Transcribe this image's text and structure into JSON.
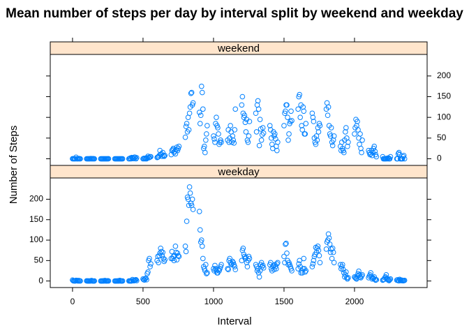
{
  "chart_data": {
    "type": "scatter",
    "layout": "panels",
    "title": "Mean number of steps per day by interval split by weekend and weekday",
    "xlabel": "Interval",
    "ylabel": "Number of Steps",
    "xlim": [
      -158,
      2515
    ],
    "xticks": [
      0,
      500,
      1000,
      1500,
      2000
    ],
    "ylim": [
      -16,
      252
    ],
    "yticks": [
      0,
      50,
      100,
      150,
      200
    ],
    "strip_color": "#ffe5cc",
    "x": [
      0,
      5,
      10,
      15,
      20,
      25,
      30,
      35,
      40,
      45,
      50,
      55,
      100,
      105,
      110,
      115,
      120,
      125,
      130,
      135,
      140,
      145,
      150,
      155,
      200,
      205,
      210,
      215,
      220,
      225,
      230,
      235,
      240,
      245,
      250,
      255,
      300,
      305,
      310,
      315,
      320,
      325,
      330,
      335,
      340,
      345,
      350,
      355,
      400,
      405,
      410,
      415,
      420,
      425,
      430,
      435,
      440,
      445,
      450,
      455,
      500,
      505,
      510,
      515,
      520,
      525,
      530,
      535,
      540,
      545,
      550,
      555,
      600,
      605,
      610,
      615,
      620,
      625,
      630,
      635,
      640,
      645,
      650,
      655,
      700,
      705,
      710,
      715,
      720,
      725,
      730,
      735,
      740,
      745,
      750,
      755,
      800,
      805,
      810,
      815,
      820,
      825,
      830,
      835,
      840,
      845,
      850,
      855,
      900,
      905,
      910,
      915,
      920,
      925,
      930,
      935,
      940,
      945,
      950,
      955,
      1000,
      1005,
      1010,
      1015,
      1020,
      1025,
      1030,
      1035,
      1040,
      1045,
      1050,
      1055,
      1100,
      1105,
      1110,
      1115,
      1120,
      1125,
      1130,
      1135,
      1140,
      1145,
      1150,
      1155,
      1200,
      1205,
      1210,
      1215,
      1220,
      1225,
      1230,
      1235,
      1240,
      1245,
      1250,
      1255,
      1300,
      1305,
      1310,
      1315,
      1320,
      1325,
      1330,
      1335,
      1340,
      1345,
      1350,
      1355,
      1400,
      1405,
      1410,
      1415,
      1420,
      1425,
      1430,
      1435,
      1440,
      1445,
      1450,
      1455,
      1500,
      1505,
      1510,
      1515,
      1520,
      1525,
      1530,
      1535,
      1540,
      1545,
      1550,
      1555,
      1600,
      1605,
      1610,
      1615,
      1620,
      1625,
      1630,
      1635,
      1640,
      1645,
      1650,
      1655,
      1700,
      1705,
      1710,
      1715,
      1720,
      1725,
      1730,
      1735,
      1740,
      1745,
      1750,
      1755,
      1800,
      1805,
      1810,
      1815,
      1820,
      1825,
      1830,
      1835,
      1840,
      1845,
      1850,
      1855,
      1900,
      1905,
      1910,
      1915,
      1920,
      1925,
      1930,
      1935,
      1940,
      1945,
      1950,
      1955,
      2000,
      2005,
      2010,
      2015,
      2020,
      2025,
      2030,
      2035,
      2040,
      2045,
      2050,
      2055,
      2100,
      2105,
      2110,
      2115,
      2120,
      2125,
      2130,
      2135,
      2140,
      2145,
      2150,
      2155,
      2200,
      2205,
      2210,
      2215,
      2220,
      2225,
      2230,
      2235,
      2240,
      2245,
      2250,
      2255,
      2300,
      2305,
      2310,
      2315,
      2320,
      2325,
      2330,
      2335,
      2340,
      2345,
      2350,
      2355
    ],
    "series": [
      {
        "name": "weekend",
        "color": "#0080ff",
        "values": [
          0.2,
          0,
          0,
          0,
          0,
          3.8,
          0,
          0,
          0,
          0.5,
          0,
          0,
          0,
          0,
          0,
          0,
          0,
          0,
          0.5,
          0,
          0,
          0.3,
          0,
          0,
          0,
          0,
          0,
          0,
          0,
          0,
          0,
          0,
          0,
          0,
          0,
          0.2,
          0,
          0,
          0,
          0,
          0,
          0,
          0,
          0,
          0,
          0,
          0,
          0,
          0,
          0,
          1.8,
          0,
          3,
          2,
          0.5,
          0.5,
          4,
          3.6,
          0,
          2.5,
          0,
          1,
          0,
          1.2,
          0,
          0,
          2.5,
          6,
          2.5,
          3,
          5,
          5,
          3,
          4,
          5,
          8,
          20,
          10,
          12,
          6,
          15,
          8,
          6,
          8,
          10,
          20,
          22,
          25,
          15,
          18,
          12,
          22,
          28,
          20,
          25,
          30,
          52,
          78,
          85,
          65,
          100,
          70,
          110,
          125,
          158,
          160,
          130,
          135,
          112,
          85,
          105,
          175,
          160,
          120,
          25,
          30,
          15,
          45,
          60,
          80,
          55,
          48,
          40,
          85,
          100,
          80,
          75,
          60,
          35,
          40,
          45,
          40,
          45,
          70,
          40,
          50,
          80,
          65,
          40,
          55,
          45,
          38,
          70,
          120,
          130,
          150,
          110,
          100,
          105,
          88,
          65,
          95,
          45,
          40,
          55,
          90,
          110,
          65,
          130,
          140,
          120,
          32,
          95,
          72,
          45,
          58,
          75,
          62,
          80,
          70,
          50,
          35,
          25,
          65,
          55,
          60,
          48,
          30,
          20,
          40,
          80,
          110,
          115,
          130,
          130,
          100,
          45,
          60,
          85,
          90,
          115,
          92,
          120,
          150,
          155,
          100,
          130,
          80,
          70,
          125,
          115,
          60,
          60,
          85,
          110,
          100,
          90,
          50,
          40,
          35,
          55,
          45,
          75,
          65,
          85,
          80,
          120,
          135,
          105,
          125,
          80,
          60,
          55,
          75,
          40,
          32,
          45,
          55,
          30,
          20,
          40,
          25,
          20,
          15,
          45,
          65,
          75,
          50,
          30,
          40,
          60,
          75,
          95,
          80,
          90,
          70,
          50,
          35,
          60,
          25,
          15,
          45,
          20,
          15,
          10,
          12,
          20,
          8,
          15,
          25,
          30,
          18,
          10,
          5,
          5,
          0,
          0,
          0,
          0,
          0,
          1,
          0,
          2,
          0,
          0,
          5,
          0,
          0,
          12,
          15,
          10,
          0,
          0,
          0,
          0,
          5,
          8,
          0
        ]
      },
      {
        "name": "weekday",
        "color": "#0080ff",
        "values": [
          2.3,
          0.5,
          0.2,
          0.2,
          0.1,
          1.6,
          0.7,
          1.1,
          0,
          1.3,
          0.3,
          0.1,
          0.4,
          0.1,
          0.1,
          0.1,
          0,
          0.2,
          0.3,
          1.2,
          0.2,
          0,
          0,
          0.1,
          0,
          0.1,
          0.2,
          0,
          0.5,
          0.1,
          1.2,
          0.3,
          0,
          0.2,
          0.6,
          0.1,
          0,
          0.1,
          0,
          0.2,
          0.1,
          0.3,
          0,
          1.5,
          0.4,
          0.1,
          0,
          0.2,
          0.2,
          0.1,
          0.2,
          0,
          0.4,
          3.5,
          1,
          0.6,
          1.4,
          2.7,
          3.1,
          1,
          5,
          3,
          2.5,
          5.5,
          7,
          3,
          18,
          22,
          50,
          55,
          35,
          42,
          50,
          60,
          45,
          62,
          68,
          80,
          72,
          62,
          70,
          55,
          48,
          52,
          55,
          72,
          55,
          60,
          50,
          62,
          85,
          70,
          52,
          68,
          62,
          60,
          85,
          72,
          146,
          205,
          200,
          185,
          230,
          215,
          190,
          185,
          200,
          175,
          170,
          125,
          95,
          100,
          85,
          55,
          35,
          30,
          25,
          40,
          18,
          20,
          30,
          25,
          38,
          30,
          25,
          20,
          20,
          28,
          25,
          30,
          35,
          40,
          30,
          28,
          50,
          55,
          45,
          40,
          42,
          48,
          45,
          40,
          35,
          28,
          50,
          75,
          80,
          65,
          60,
          55,
          58,
          45,
          35,
          50,
          60,
          55,
          40,
          35,
          25,
          30,
          20,
          10,
          25,
          40,
          45,
          35,
          38,
          32,
          40,
          45,
          30,
          25,
          35,
          38,
          28,
          40,
          35,
          30,
          42,
          45,
          60,
          45,
          90,
          92,
          68,
          50,
          40,
          45,
          40,
          35,
          30,
          25,
          30,
          42,
          50,
          35,
          20,
          25,
          20,
          30,
          55,
          30,
          22,
          25,
          35,
          42,
          50,
          60,
          65,
          82,
          70,
          80,
          85,
          75,
          62,
          45,
          78,
          95,
          100,
          115,
          105,
          90,
          70,
          78,
          55,
          80,
          70,
          45,
          40,
          30,
          35,
          40,
          28,
          20,
          10,
          15,
          22,
          8,
          5,
          8,
          10,
          8,
          6,
          5,
          12,
          18,
          24,
          15,
          10,
          8,
          12,
          15,
          8,
          12,
          15,
          20,
          10,
          5,
          8,
          6,
          10,
          4,
          2,
          3,
          2,
          3,
          4,
          8,
          10,
          15,
          6,
          4,
          2,
          1,
          3,
          5,
          2,
          3,
          1,
          0.5,
          4,
          2,
          1,
          2,
          1,
          0.5,
          1,
          1.5
        ]
      }
    ]
  }
}
